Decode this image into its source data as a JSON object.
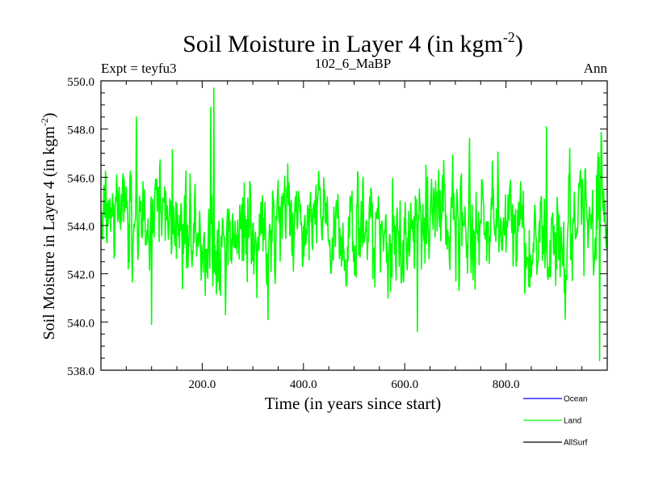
{
  "chart_data": {
    "type": "line",
    "title": "Soil Moisture in Layer 4 (in kgm",
    "title_sup": "-2",
    "title_close": ")",
    "subtitle_left": "Expt = teyfu3",
    "subtitle_center": "102_6_MaBP",
    "subtitle_right": "Ann",
    "xlabel": "Time (in years since start)",
    "ylabel": "Soil Moisture in Layer 4 (in kgm",
    "ylabel_sup": "-2",
    "ylabel_close": ")",
    "xlim": [
      0,
      1000
    ],
    "ylim": [
      538,
      550
    ],
    "xticks": [
      200,
      400,
      600,
      800
    ],
    "xtick_labels": [
      "200.0",
      "400.0",
      "600.0",
      "800.0"
    ],
    "yticks": [
      538,
      540,
      542,
      544,
      546,
      548,
      550
    ],
    "ytick_labels": [
      "538.0",
      "540.0",
      "542.0",
      "544.0",
      "546.0",
      "548.0",
      "550.0"
    ],
    "series": [
      {
        "name": "Ocean",
        "color": "#0000ff",
        "values": []
      },
      {
        "name": "Land",
        "color": "#00ff00",
        "x_start": 1,
        "x_step": 1,
        "count": 1000,
        "mean": 544.0,
        "std": 1.4,
        "min": 538.4,
        "max": 549.7,
        "values": []
      },
      {
        "name": "AllSurf",
        "color": "#000000",
        "values": []
      }
    ],
    "legend_position": "bottom-right"
  }
}
